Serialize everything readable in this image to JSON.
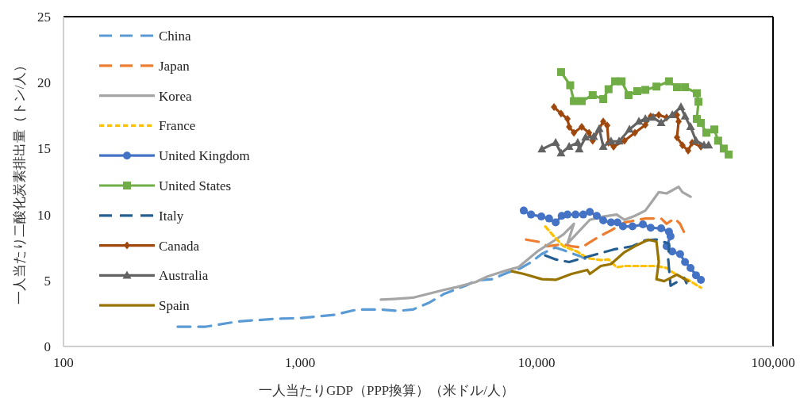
{
  "chart_data": {
    "type": "line",
    "xlabel": "一人当たりGDP（PPP換算）（米ドル/人）",
    "ylabel": "一人当たり二酸化炭素排出量（トン/人）",
    "log": "x",
    "xlim": [
      100,
      100000
    ],
    "xticks": [
      100,
      {
        "value": 1000,
        "label": "1,000"
      },
      {
        "value": 10000,
        "label": "10,000"
      },
      {
        "value": 100000,
        "label": "100,000"
      }
    ],
    "ylim": [
      0,
      25
    ],
    "yticks": [
      0,
      5,
      10,
      15,
      20,
      25
    ],
    "grid": false,
    "legend": "top left",
    "series": [
      {
        "name": "China",
        "color": "#5b9bd5",
        "line_style": "dashed",
        "marker": "none",
        "x": [
          304,
          400,
          547,
          800,
          1000,
          1400,
          1745,
          2200,
          2600,
          3000,
          3500,
          4080,
          5000,
          5560,
          6490,
          7560,
          8500,
          9500,
          10500,
          12000,
          13000,
          14400,
          15500,
          16200
        ],
        "values": [
          1.5,
          1.5,
          1.9,
          2.1,
          2.15,
          2.4,
          2.8,
          2.8,
          2.7,
          2.8,
          3.3,
          4.0,
          4.6,
          5.0,
          5.1,
          5.6,
          5.9,
          6.4,
          7.0,
          7.5,
          7.3,
          7.0,
          6.8,
          6.6
        ]
      },
      {
        "name": "Japan",
        "color": "#ed7d31",
        "line_style": "dashed",
        "marker": "none",
        "x": [
          9040,
          10470,
          11100,
          13000,
          14060,
          15530,
          16800,
          18700,
          20660,
          23550,
          28850,
          33650,
          35480,
          38350,
          40460,
          42460
        ],
        "values": [
          8.1,
          7.9,
          7.6,
          7.75,
          7.6,
          7.5,
          7.9,
          8.4,
          8.8,
          9.4,
          9.7,
          9.7,
          9.3,
          9.7,
          9.3,
          8.5
        ]
      },
      {
        "name": "Korea",
        "color": "#a5a5a5",
        "line_style": "solid",
        "marker": "none",
        "x": [
          2198,
          2500,
          3000,
          3500,
          4080,
          4600,
          5560,
          6200,
          7560,
          8370,
          10080,
          12050,
          13000,
          14390,
          13520,
          16800,
          19150,
          21830,
          23550,
          26060,
          28850,
          31130,
          32880,
          35480,
          39900,
          41400,
          44800
        ],
        "values": [
          3.55,
          3.6,
          3.7,
          4.0,
          4.3,
          4.5,
          4.9,
          5.3,
          5.8,
          6.0,
          7.2,
          8.1,
          8.5,
          9.3,
          7.8,
          9.6,
          9.85,
          10.0,
          9.6,
          9.9,
          10.3,
          11.1,
          11.7,
          11.6,
          12.1,
          11.7,
          11.35
        ]
      },
      {
        "name": "France",
        "color": "#ffc000",
        "line_style": "dotted",
        "marker": "none",
        "x": [
          10890,
          12050,
          13000,
          14830,
          16410,
          18700,
          20170,
          21830,
          23550,
          25450,
          28180,
          32150,
          35480,
          39260,
          43770,
          49560
        ],
        "values": [
          9.1,
          8.2,
          7.6,
          7.2,
          6.7,
          6.55,
          6.6,
          6.0,
          6.1,
          6.1,
          6.1,
          6.1,
          5.95,
          5.4,
          5.05,
          4.45
        ]
      },
      {
        "name": "United Kingdom",
        "color": "#4472c4",
        "line_style": "solid",
        "marker": "circle",
        "x": [
          8830,
          9480,
          10480,
          11300,
          12050,
          12780,
          13520,
          14620,
          15760,
          16800,
          17990,
          19150,
          20660,
          21990,
          23200,
          25450,
          28180,
          30400,
          33650,
          36310,
          36880,
          35480,
          37500,
          40460,
          42460,
          44800,
          47240,
          49560
        ],
        "values": [
          10.3,
          10.0,
          9.85,
          9.7,
          9.4,
          9.9,
          10.0,
          10.0,
          10.0,
          10.2,
          9.9,
          9.55,
          9.4,
          9.4,
          9.1,
          9.1,
          9.25,
          9.0,
          8.95,
          8.7,
          8.35,
          7.6,
          7.2,
          7.0,
          6.4,
          5.95,
          5.4,
          5.05
        ]
      },
      {
        "name": "United States",
        "color": "#70ad47",
        "line_style": "solid",
        "marker": "square",
        "x": [
          12700,
          13880,
          14390,
          15530,
          17280,
          19150,
          20170,
          21500,
          22900,
          24490,
          26670,
          28850,
          32150,
          36310,
          39260,
          42460,
          47630,
          48400,
          47630,
          49560,
          52250,
          56450,
          58600,
          61900,
          64900
        ],
        "values": [
          20.8,
          19.8,
          18.6,
          18.6,
          19.05,
          18.75,
          19.5,
          20.1,
          20.1,
          19.05,
          19.35,
          19.45,
          19.7,
          20.1,
          19.65,
          19.65,
          19.2,
          18.55,
          17.25,
          16.95,
          16.2,
          16.45,
          15.6,
          15.0,
          14.55
        ]
      },
      {
        "name": "Italy",
        "color": "#255e91",
        "line_style": "dashed",
        "marker": "none",
        "x": [
          10890,
          12050,
          13740,
          16800,
          21180,
          25450,
          28850,
          32150,
          36310,
          36050,
          36880,
          42100,
          43060
        ],
        "values": [
          6.9,
          6.6,
          6.4,
          6.85,
          7.35,
          7.6,
          8.05,
          8.1,
          7.8,
          6.6,
          4.6,
          5.2,
          4.8
        ]
      },
      {
        "name": "Canada",
        "color": "#9e480e",
        "line_style": "solid",
        "marker": "diamond",
        "x": [
          11860,
          12700,
          13520,
          13740,
          14390,
          15530,
          16670,
          17280,
          19150,
          19910,
          20170,
          21180,
          23550,
          26060,
          28850,
          30400,
          32880,
          35480,
          39260,
          39900,
          39260,
          41400,
          43770,
          45500,
          49560
        ],
        "values": [
          18.15,
          17.65,
          17.25,
          16.65,
          16.2,
          16.65,
          16.2,
          15.6,
          17.05,
          16.75,
          15.45,
          15.15,
          15.6,
          16.2,
          16.8,
          17.45,
          17.55,
          17.35,
          17.55,
          17.05,
          15.85,
          15.25,
          14.85,
          15.45,
          15.15
        ]
      },
      {
        "name": "Australia",
        "color": "#636363",
        "line_style": "solid",
        "marker": "triangle",
        "x": [
          10540,
          12050,
          12700,
          13740,
          14940,
          15160,
          16130,
          17450,
          18420,
          19150,
          20660,
          22350,
          24720,
          27100,
          28850,
          31130,
          33650,
          37500,
          40800,
          42460,
          44800,
          47240,
          51060,
          53400
        ],
        "values": [
          14.95,
          15.45,
          14.65,
          15.15,
          15.45,
          14.95,
          15.85,
          15.9,
          16.5,
          15.15,
          15.55,
          15.55,
          16.45,
          17.05,
          17.25,
          17.35,
          16.95,
          17.55,
          18.15,
          17.45,
          16.65,
          15.6,
          15.25,
          15.25
        ]
      },
      {
        "name": "Spain",
        "color": "#997300",
        "line_style": "solid",
        "marker": "none",
        "x": [
          7870,
          8830,
          10540,
          12050,
          14060,
          16410,
          16800,
          18700,
          20660,
          23550,
          26060,
          29720,
          32150,
          32880,
          32150,
          34660,
          39260,
          43770
        ],
        "values": [
          5.7,
          5.5,
          5.1,
          5.05,
          5.5,
          5.8,
          5.5,
          6.1,
          6.25,
          7.15,
          7.6,
          8.1,
          7.95,
          6.4,
          5.1,
          4.95,
          5.45,
          4.95
        ]
      }
    ]
  }
}
